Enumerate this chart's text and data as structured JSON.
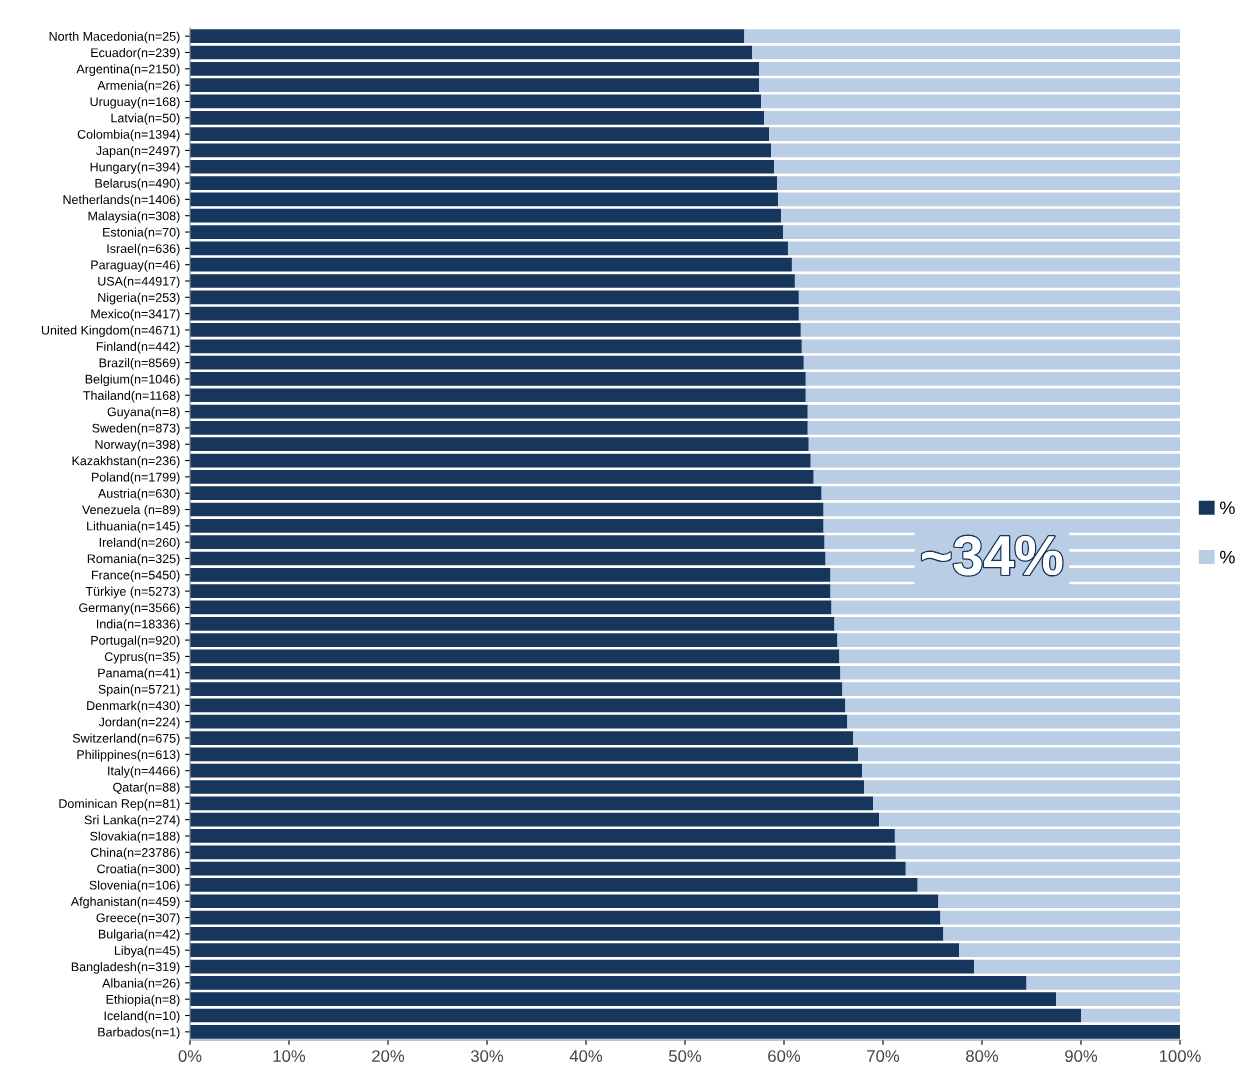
{
  "chart_data": {
    "type": "bar",
    "orientation": "horizontal",
    "stacked": true,
    "categories": [
      "North Macedonia(n=25)",
      "Ecuador(n=239)",
      "Argentina(n=2150)",
      "Armenia(n=26)",
      "Uruguay(n=168)",
      "Latvia(n=50)",
      "Colombia(n=1394)",
      "Japan(n=2497)",
      "Hungary(n=394)",
      "Belarus(n=490)",
      "Netherlands(n=1406)",
      "Malaysia(n=308)",
      "Estonia(n=70)",
      "Israel(n=636)",
      "Paraguay(n=46)",
      "USA(n=44917)",
      "Nigeria(n=253)",
      "Mexico(n=3417)",
      "United Kingdom(n=4671)",
      "Finland(n=442)",
      "Brazil(n=8569)",
      "Belgium(n=1046)",
      "Thailand(n=1168)",
      "Guyana(n=8)",
      "Sweden(n=873)",
      "Norway(n=398)",
      "Kazakhstan(n=236)",
      "Poland(n=1799)",
      "Austria(n=630)",
      "Venezuela (n=89)",
      "Lithuania(n=145)",
      "Ireland(n=260)",
      "Romania(n=325)",
      "France(n=5450)",
      "Türkiye (n=5273)",
      "Germany(n=3566)",
      "India(n=18336)",
      "Portugal(n=920)",
      "Cyprus(n=35)",
      "Panama(n=41)",
      "Spain(n=5721)",
      "Denmark(n=430)",
      "Jordan(n=224)",
      "Switzerland(n=675)",
      "Philippines(n=613)",
      "Italy(n=4466)",
      "Qatar(n=88)",
      "Dominican Rep(n=81)",
      "Sri Lanka(n=274)",
      "Slovakia(n=188)",
      "China(n=23786)",
      "Croatia(n=300)",
      "Slovenia(n=106)",
      "Afghanistan(n=459)",
      "Greece(n=307)",
      "Bulgaria(n=42)",
      "Libya(n=45)",
      "Bangladesh(n=319)",
      "Albania(n=26)",
      "Ethiopia(n=8)",
      "Iceland(n=10)",
      "Barbados(n=1)"
    ],
    "series": [
      {
        "name": "%",
        "color": "#17365d",
        "values": [
          56.0,
          56.8,
          57.5,
          57.5,
          57.7,
          58.0,
          58.5,
          58.7,
          59.0,
          59.3,
          59.4,
          59.7,
          59.9,
          60.4,
          60.8,
          61.1,
          61.5,
          61.5,
          61.7,
          61.8,
          62.0,
          62.2,
          62.2,
          62.4,
          62.4,
          62.5,
          62.7,
          63.0,
          63.8,
          64.0,
          64.0,
          64.1,
          64.2,
          64.7,
          64.7,
          64.8,
          65.1,
          65.4,
          65.6,
          65.7,
          65.9,
          66.2,
          66.4,
          67.0,
          67.5,
          67.9,
          68.1,
          69.0,
          69.6,
          71.2,
          71.3,
          72.3,
          73.5,
          75.6,
          75.8,
          76.1,
          77.7,
          79.2,
          84.5,
          87.5,
          90.0,
          100.0
        ]
      },
      {
        "name": "%",
        "color": "#b9cde5",
        "values": [
          44.0,
          43.2,
          42.5,
          42.5,
          42.3,
          42.0,
          41.5,
          41.3,
          41.0,
          40.7,
          40.6,
          40.3,
          40.1,
          39.6,
          39.2,
          38.9,
          38.5,
          38.5,
          38.3,
          38.2,
          38.0,
          37.8,
          37.8,
          37.6,
          37.6,
          37.5,
          37.3,
          37.0,
          36.2,
          36.0,
          36.0,
          35.9,
          35.8,
          35.3,
          35.3,
          35.2,
          34.9,
          34.6,
          34.4,
          34.3,
          34.1,
          33.8,
          33.6,
          33.0,
          32.5,
          32.1,
          31.9,
          31.0,
          30.4,
          28.8,
          28.7,
          27.7,
          26.5,
          24.4,
          24.2,
          23.9,
          22.3,
          20.8,
          15.5,
          12.5,
          10.0,
          0.0
        ]
      }
    ],
    "xlim": [
      0,
      100
    ],
    "xticks": [
      {
        "value": 0,
        "label": "0%"
      },
      {
        "value": 10,
        "label": "10%"
      },
      {
        "value": 20,
        "label": "20%"
      },
      {
        "value": 30,
        "label": "30%"
      },
      {
        "value": 40,
        "label": "40%"
      },
      {
        "value": 50,
        "label": "50%"
      },
      {
        "value": 60,
        "label": "60%"
      },
      {
        "value": 70,
        "label": "70%"
      },
      {
        "value": 80,
        "label": "80%"
      },
      {
        "value": 90,
        "label": "90%"
      },
      {
        "value": 100,
        "label": "100%"
      }
    ],
    "annotations": [
      "~34%"
    ],
    "legend": "right",
    "grid": false
  }
}
